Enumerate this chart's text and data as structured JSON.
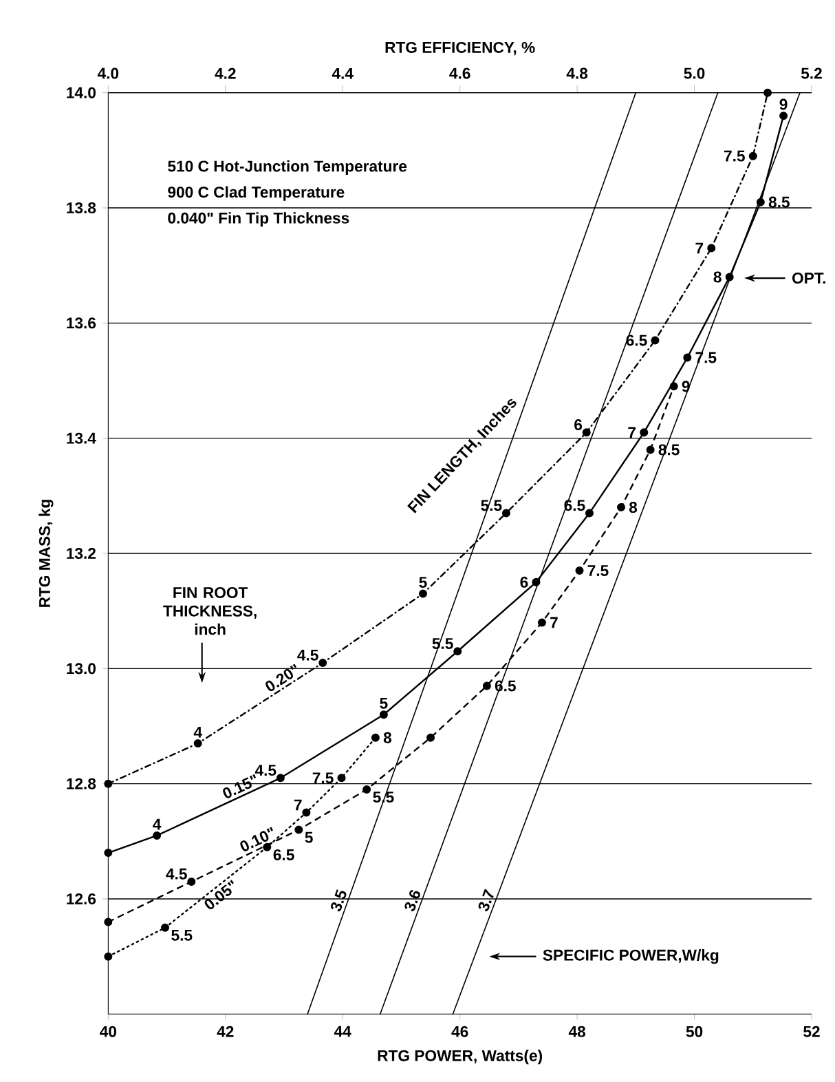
{
  "chart_data": {
    "type": "line",
    "xlabel": "RTG POWER, Watts(e)",
    "ylabel": "RTG MASS, kg",
    "x2label": "RTG EFFICIENCY, %",
    "xlim": [
      40,
      52
    ],
    "xticks": [
      40,
      42,
      44,
      46,
      48,
      50,
      52
    ],
    "x2lim": [
      4.0,
      5.2
    ],
    "x2ticks": [
      {
        "value": 4.0,
        "label": "4.0"
      },
      4.2,
      4.4,
      4.6,
      4.8,
      {
        "value": 5.0,
        "label": "5.0"
      },
      5.2
    ],
    "ylim": [
      12.4,
      14.0
    ],
    "yticks": [
      12.6,
      12.8,
      {
        "value": 13.0,
        "label": "13.0"
      },
      13.2,
      13.4,
      13.6,
      13.8,
      {
        "value": 14.0,
        "label": "14.0"
      }
    ],
    "grid": "y",
    "series": [
      {
        "name": "0.20\"",
        "color": "#000000",
        "line_style": "dashdot",
        "marker": "circle",
        "x": [
          40,
          41.53,
          43.66,
          45.37,
          46.79,
          48.16,
          49.33,
          50.29,
          51.0,
          51.25
        ],
        "values": [
          12.8,
          12.87,
          13.01,
          13.13,
          13.27,
          13.41,
          13.57,
          13.73,
          13.89,
          14.0
        ]
      },
      {
        "name": "0.15\"",
        "color": "#000000",
        "line_style": "solid",
        "marker": "circle",
        "x": [
          40,
          40.83,
          42.94,
          44.7,
          45.96,
          47.3,
          48.21,
          49.14,
          49.88,
          50.6,
          51.13,
          51.52
        ],
        "values": [
          12.68,
          12.71,
          12.81,
          12.92,
          13.03,
          13.15,
          13.27,
          13.41,
          13.54,
          13.68,
          13.81,
          13.96
        ]
      },
      {
        "name": "0.10\"",
        "color": "#000000",
        "line_style": "dashed",
        "marker": "circle",
        "x": [
          40,
          41.42,
          43.25,
          44.41,
          45.5,
          46.46,
          47.4,
          48.04,
          48.75,
          49.25,
          49.65
        ],
        "values": [
          12.56,
          12.63,
          12.72,
          12.79,
          12.88,
          12.97,
          13.08,
          13.17,
          13.28,
          13.38,
          13.49
        ]
      },
      {
        "name": "0.05\"",
        "color": "#000000",
        "line_style": "dotted",
        "marker": "circle",
        "x": [
          40,
          40.97,
          42.71,
          43.38,
          43.98,
          44.56
        ],
        "values": [
          12.5,
          12.55,
          12.69,
          12.75,
          12.81,
          12.88
        ]
      },
      {
        "name": "3.5",
        "color": "#000000",
        "line_style": "solid",
        "marker": "none",
        "x": [
          43.4,
          49.0
        ],
        "values": [
          12.4,
          14.0
        ]
      },
      {
        "name": "3.6",
        "color": "#000000",
        "line_style": "solid",
        "marker": "none",
        "x": [
          44.64,
          50.4
        ],
        "values": [
          12.4,
          14.0
        ]
      },
      {
        "name": "3.7",
        "color": "#000000",
        "line_style": "solid",
        "marker": "none",
        "x": [
          45.88,
          51.8
        ],
        "values": [
          12.4,
          14.0
        ]
      }
    ],
    "annotations": [
      "510 C Hot-Junction Temperature",
      "900 C Clad Temperature",
      "0.040\" Fin Tip Thickness",
      "FIN LENGTH, Inches",
      "FIN ROOT THICKNESS, inch",
      "OPT.",
      "SPECIFIC POWER,W/kg",
      {
        "text": "4",
        "x": 41.53,
        "y": 12.87
      },
      {
        "text": "4.5",
        "x": 43.66,
        "y": 13.01
      },
      {
        "text": "5",
        "x": 45.37,
        "y": 13.13
      },
      {
        "text": "5.5",
        "x": 46.79,
        "y": 13.27
      },
      {
        "text": "6",
        "x": 48.16,
        "y": 13.41
      },
      {
        "text": "6.5",
        "x": 49.33,
        "y": 13.57
      },
      {
        "text": "7",
        "x": 50.29,
        "y": 13.73
      },
      {
        "text": "7.5",
        "x": 51.0,
        "y": 13.89
      },
      {
        "text": "4",
        "x": 40.83,
        "y": 12.71
      },
      {
        "text": "4.5",
        "x": 42.94,
        "y": 12.81
      },
      {
        "text": "5",
        "x": 44.7,
        "y": 12.92
      },
      {
        "text": "5.5",
        "x": 45.96,
        "y": 13.03
      },
      {
        "text": "6",
        "x": 47.3,
        "y": 13.15
      },
      {
        "text": "6.5",
        "x": 48.21,
        "y": 13.27
      },
      {
        "text": "7",
        "x": 49.14,
        "y": 13.41
      },
      {
        "text": "7.5",
        "x": 49.88,
        "y": 13.54
      },
      {
        "text": "8",
        "x": 50.6,
        "y": 13.68
      },
      {
        "text": "8.5",
        "x": 51.13,
        "y": 13.81
      },
      {
        "text": "9",
        "x": 51.52,
        "y": 13.96
      },
      {
        "text": "4.5",
        "x": 41.42,
        "y": 12.63
      },
      {
        "text": "5",
        "x": 43.25,
        "y": 12.72
      },
      {
        "text": "5.5",
        "x": 44.41,
        "y": 12.79
      },
      {
        "text": "6.5",
        "x": 46.46,
        "y": 12.97
      },
      {
        "text": "7",
        "x": 47.4,
        "y": 13.08
      },
      {
        "text": "7.5",
        "x": 48.04,
        "y": 13.17
      },
      {
        "text": "8",
        "x": 48.75,
        "y": 13.28
      },
      {
        "text": "8.5",
        "x": 49.25,
        "y": 13.38
      },
      {
        "text": "9",
        "x": 49.65,
        "y": 13.49
      },
      {
        "text": "5.5",
        "x": 40.97,
        "y": 12.55
      },
      {
        "text": "6.5",
        "x": 42.71,
        "y": 12.69
      },
      {
        "text": "7",
        "x": 43.38,
        "y": 12.75
      },
      {
        "text": "7.5",
        "x": 43.98,
        "y": 12.81
      },
      {
        "text": "8",
        "x": 44.56,
        "y": 12.88
      }
    ]
  }
}
